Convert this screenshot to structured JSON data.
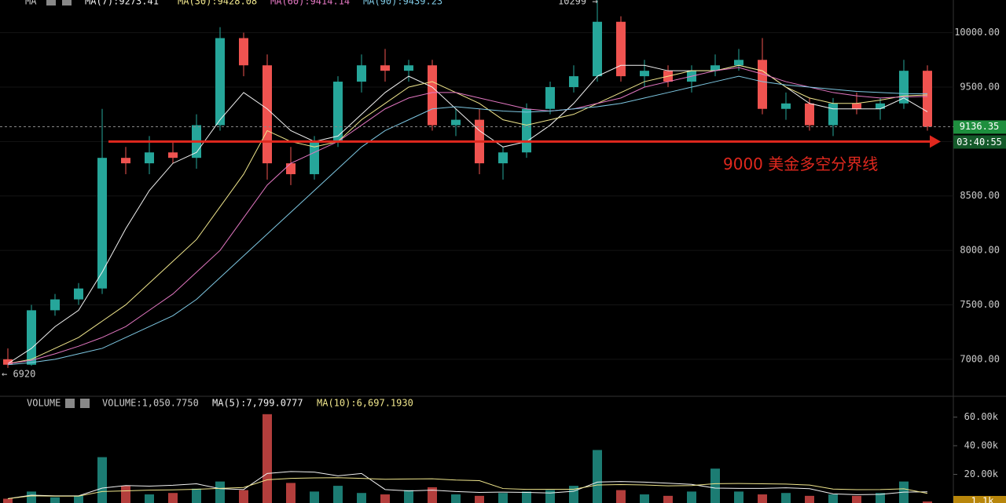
{
  "chart_data": [
    {
      "type": "candlestick",
      "legend_label": "MA",
      "high_label": "10299 →",
      "low_label": "← 6920",
      "last_price": 9136.35,
      "countdown": "03:40:55",
      "annotation": "9000 美金多空分界线",
      "reference_line": {
        "value": 9000,
        "color": "#e0281e"
      },
      "up_color": "#26a69a",
      "down_color": "#ef5350",
      "ylim": [
        6660,
        10300
      ],
      "yticks": [
        {
          "value": 10000,
          "label": "10000.00"
        },
        {
          "value": 9500,
          "label": "9500.00"
        },
        {
          "value": 9000,
          "label": "9000.00"
        },
        {
          "value": 8500,
          "label": "8500.00"
        },
        {
          "value": 8000,
          "label": "8000.00"
        },
        {
          "value": 7500,
          "label": "7500.00"
        },
        {
          "value": 7000,
          "label": "7000.00"
        }
      ],
      "grid": true,
      "open": [
        7000,
        6950,
        7450,
        7550,
        7650,
        8850,
        8800,
        8900,
        8850,
        9150,
        9950,
        9700,
        8800,
        8700,
        9000,
        9550,
        9700,
        9650,
        9700,
        9150,
        9200,
        8800,
        8900,
        9300,
        9500,
        9600,
        10100,
        9600,
        9650,
        9550,
        9650,
        9700,
        9750,
        9300,
        9350,
        9150,
        9350,
        9300,
        9350,
        9650
      ],
      "high": [
        7100,
        7500,
        7600,
        7700,
        9300,
        8950,
        9050,
        9000,
        9250,
        10050,
        10000,
        9800,
        8950,
        9050,
        9600,
        9800,
        9850,
        9750,
        9750,
        9300,
        9300,
        8950,
        9350,
        9550,
        9700,
        10299,
        10150,
        9750,
        9700,
        9700,
        9800,
        9850,
        9950,
        9450,
        9400,
        9400,
        9450,
        9400,
        9750,
        9700
      ],
      "low": [
        6920,
        6940,
        7400,
        7500,
        7600,
        8700,
        8700,
        8800,
        8750,
        9100,
        9600,
        8650,
        8600,
        8650,
        8950,
        9450,
        9550,
        9550,
        9100,
        9050,
        8700,
        8650,
        8850,
        9250,
        9450,
        9550,
        9550,
        9500,
        9500,
        9450,
        9600,
        9650,
        9250,
        9200,
        9100,
        9050,
        9250,
        9200,
        9300,
        9100
      ],
      "close": [
        6950,
        7450,
        7550,
        7650,
        8850,
        8800,
        8900,
        8850,
        9150,
        9950,
        9700,
        8800,
        8700,
        9000,
        9550,
        9700,
        9650,
        9700,
        9150,
        9200,
        8800,
        8900,
        9300,
        9500,
        9600,
        10100,
        9600,
        9650,
        9550,
        9650,
        9700,
        9750,
        9300,
        9350,
        9150,
        9350,
        9300,
        9350,
        9650,
        9136.35
      ],
      "series": [
        {
          "name": "MA(7):9273.41",
          "color": "#f2f2f2",
          "values": [
            6960,
            7100,
            7300,
            7450,
            7800,
            8200,
            8550,
            8800,
            8900,
            9200,
            9450,
            9300,
            9100,
            9000,
            9050,
            9250,
            9450,
            9600,
            9500,
            9300,
            9100,
            8950,
            9000,
            9150,
            9350,
            9600,
            9700,
            9700,
            9650,
            9650,
            9650,
            9700,
            9650,
            9500,
            9350,
            9300,
            9300,
            9300,
            9400,
            9273.41
          ]
        },
        {
          "name": "MA(30):9428.08",
          "color": "#f0e68c",
          "values": [
            6960,
            7000,
            7100,
            7200,
            7350,
            7500,
            7700,
            7900,
            8100,
            8400,
            8700,
            9100,
            9000,
            8950,
            9000,
            9200,
            9350,
            9500,
            9550,
            9450,
            9350,
            9200,
            9150,
            9200,
            9250,
            9350,
            9450,
            9550,
            9600,
            9650,
            9650,
            9700,
            9650,
            9500,
            9400,
            9350,
            9350,
            9380,
            9420,
            9428.08
          ]
        },
        {
          "name": "MA(60):9414.14",
          "color": "#e377c2",
          "values": [
            6960,
            6990,
            7050,
            7120,
            7200,
            7300,
            7450,
            7600,
            7800,
            8000,
            8300,
            8600,
            8800,
            8900,
            9000,
            9150,
            9300,
            9400,
            9450,
            9450,
            9400,
            9350,
            9300,
            9280,
            9300,
            9350,
            9400,
            9500,
            9550,
            9600,
            9650,
            9680,
            9620,
            9550,
            9500,
            9450,
            9420,
            9400,
            9410,
            9414.14
          ]
        },
        {
          "name": "MA(90):9439.23",
          "color": "#7ec8e3",
          "values": [
            6950,
            6970,
            7000,
            7050,
            7100,
            7200,
            7300,
            7400,
            7550,
            7750,
            7950,
            8150,
            8350,
            8550,
            8750,
            8950,
            9100,
            9200,
            9300,
            9320,
            9300,
            9280,
            9270,
            9280,
            9300,
            9320,
            9350,
            9400,
            9450,
            9500,
            9550,
            9600,
            9550,
            9520,
            9500,
            9480,
            9460,
            9450,
            9440,
            9439.23
          ]
        }
      ]
    },
    {
      "type": "bar",
      "legend_label": "VOLUME",
      "last_volume_label": "1.1k",
      "ylim": [
        0,
        74500
      ],
      "yticks": [
        {
          "value": 60000,
          "label": "60.00k"
        },
        {
          "value": 40000,
          "label": "40.00k"
        },
        {
          "value": 20000,
          "label": "20.00k"
        }
      ],
      "values": [
        3000,
        8000,
        4000,
        5000,
        32000,
        12000,
        6000,
        7000,
        10000,
        15000,
        9000,
        62000,
        14000,
        8000,
        12000,
        7000,
        6000,
        9000,
        11000,
        6000,
        5000,
        7000,
        8000,
        9000,
        12000,
        37000,
        9000,
        6000,
        5000,
        8000,
        24000,
        8000,
        6000,
        7000,
        5000,
        6000,
        5000,
        7000,
        15000,
        1050.775
      ],
      "series": [
        {
          "name": "VOLUME:1,050.7750",
          "color": "#cccccc",
          "values": null
        },
        {
          "name": "MA(5):7,799.0777",
          "color": "#f2f2f2",
          "values": [
            3000,
            5500,
            5000,
            5000,
            10400,
            12200,
            11800,
            12400,
            13400,
            10000,
            9400,
            20600,
            22000,
            21600,
            19000,
            20600,
            9400,
            8400,
            9000,
            8000,
            7400,
            7600,
            7400,
            7000,
            8200,
            14600,
            15000,
            14600,
            13800,
            13000,
            10400,
            10200,
            10200,
            10600,
            10000,
            6400,
            5800,
            6000,
            7600,
            7799.0777
          ]
        },
        {
          "name": "MA(10):6,697.1930",
          "color": "#f0e68c",
          "values": [
            3000,
            5000,
            4800,
            4800,
            8000,
            8500,
            9000,
            9200,
            9600,
            10200,
            10800,
            16200,
            17200,
            17500,
            17700,
            17200,
            16600,
            16800,
            16900,
            16000,
            15600,
            10100,
            9500,
            9600,
            9600,
            12600,
            12900,
            12600,
            12000,
            12200,
            13500,
            13600,
            13400,
            13200,
            12500,
            9700,
            9300,
            9400,
            9900,
            6697.193
          ]
        }
      ]
    }
  ]
}
